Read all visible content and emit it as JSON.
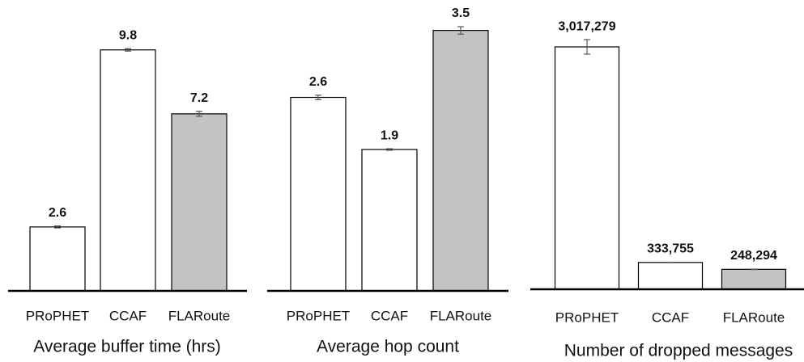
{
  "chart_data": [
    {
      "type": "bar",
      "title": "Average buffer time (hrs)",
      "categories": [
        "PRoPHET",
        "CCAF",
        "FLARoute"
      ],
      "values": [
        2.6,
        9.8,
        7.2
      ],
      "errors": [
        0.04,
        0.05,
        0.1
      ],
      "colors": [
        "#ffffff",
        "#ffffff",
        "#c3c3c3"
      ],
      "ylim": [
        0,
        11.5
      ]
    },
    {
      "type": "bar",
      "title": "Average hop count",
      "categories": [
        "PRoPHET",
        "CCAF",
        "FLARoute"
      ],
      "values": [
        2.6,
        1.9,
        3.5
      ],
      "errors": [
        0.03,
        0.01,
        0.05
      ],
      "colors": [
        "#ffffff",
        "#ffffff",
        "#c3c3c3"
      ],
      "ylim": [
        0,
        3.8
      ]
    },
    {
      "type": "bar",
      "title": "Number of dropped messages",
      "categories": [
        "PRoPHET",
        "CCAF",
        "FLARoute"
      ],
      "values": [
        3017279,
        333755,
        248294
      ],
      "value_labels": [
        "3,017,279",
        "333,755",
        "248,294"
      ],
      "errors": [
        90000,
        3000,
        3000
      ],
      "colors": [
        "#ffffff",
        "#ffffff",
        "#c3c3c3"
      ],
      "ylim": [
        0,
        3500000
      ]
    }
  ]
}
